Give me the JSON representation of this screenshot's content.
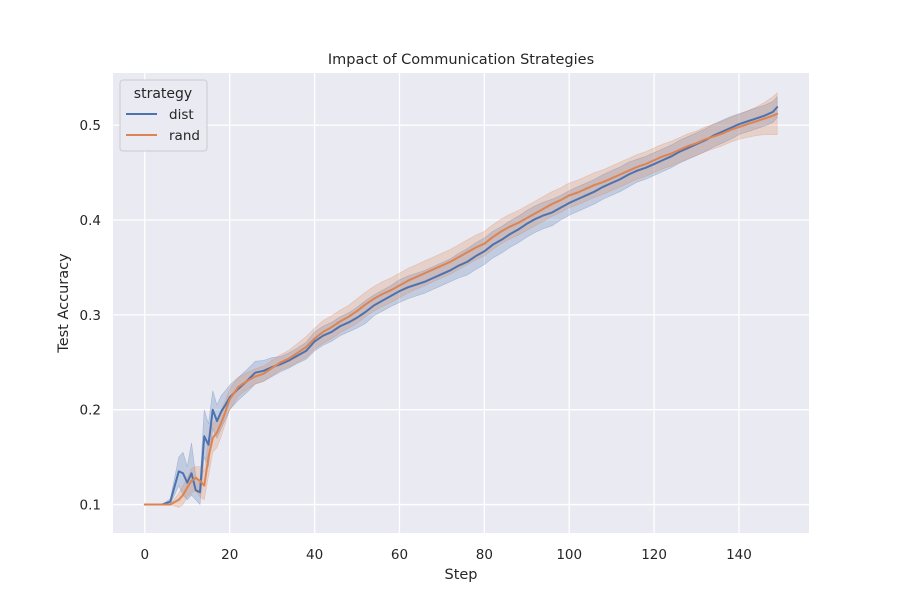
{
  "chart_data": {
    "type": "line",
    "title": "Impact of Communication Strategies",
    "xlabel": "Step",
    "ylabel": "Test Accuracy",
    "xlim": [
      -7.5,
      156.5
    ],
    "ylim": [
      0.07,
      0.555
    ],
    "xticks": [
      0,
      20,
      40,
      60,
      80,
      100,
      120,
      140
    ],
    "xtick_labels": [
      "0",
      "20",
      "40",
      "60",
      "80",
      "100",
      "120",
      "140"
    ],
    "yticks": [
      0.1,
      0.2,
      0.3,
      0.4,
      0.5
    ],
    "ytick_labels": [
      "0.1",
      "0.2",
      "0.3",
      "0.4",
      "0.5"
    ],
    "grid": true,
    "legend": {
      "title": "strategy",
      "position": "top-left"
    },
    "x": [
      0,
      2,
      4,
      6,
      8,
      9,
      10,
      11,
      12,
      13,
      14,
      15,
      16,
      17,
      18,
      19,
      20,
      22,
      24,
      26,
      28,
      30,
      32,
      34,
      36,
      38,
      40,
      42,
      44,
      46,
      48,
      50,
      52,
      54,
      56,
      58,
      60,
      62,
      64,
      66,
      68,
      70,
      72,
      74,
      76,
      78,
      80,
      82,
      84,
      86,
      88,
      90,
      92,
      94,
      96,
      98,
      100,
      102,
      104,
      106,
      108,
      110,
      112,
      114,
      116,
      118,
      120,
      122,
      124,
      126,
      128,
      130,
      132,
      134,
      136,
      138,
      140,
      142,
      144,
      146,
      148,
      149
    ],
    "series": [
      {
        "name": "dist",
        "color": "#4c72b0",
        "values": [
          0.1,
          0.1,
          0.1,
          0.103,
          0.135,
          0.133,
          0.123,
          0.133,
          0.115,
          0.113,
          0.172,
          0.163,
          0.2,
          0.188,
          0.198,
          0.205,
          0.213,
          0.222,
          0.23,
          0.239,
          0.241,
          0.245,
          0.248,
          0.252,
          0.257,
          0.262,
          0.272,
          0.278,
          0.282,
          0.288,
          0.292,
          0.297,
          0.303,
          0.31,
          0.315,
          0.32,
          0.325,
          0.329,
          0.332,
          0.335,
          0.339,
          0.343,
          0.347,
          0.352,
          0.356,
          0.362,
          0.367,
          0.374,
          0.379,
          0.385,
          0.39,
          0.396,
          0.401,
          0.405,
          0.408,
          0.413,
          0.418,
          0.422,
          0.426,
          0.43,
          0.435,
          0.439,
          0.443,
          0.448,
          0.452,
          0.455,
          0.459,
          0.463,
          0.467,
          0.472,
          0.476,
          0.48,
          0.484,
          0.489,
          0.493,
          0.497,
          0.501,
          0.504,
          0.507,
          0.51,
          0.514,
          0.519
        ],
        "lower": [
          0.1,
          0.1,
          0.1,
          0.1,
          0.12,
          0.11,
          0.105,
          0.11,
          0.105,
          0.1,
          0.15,
          0.14,
          0.18,
          0.17,
          0.18,
          0.19,
          0.2,
          0.21,
          0.218,
          0.227,
          0.23,
          0.235,
          0.24,
          0.244,
          0.249,
          0.253,
          0.262,
          0.268,
          0.272,
          0.278,
          0.282,
          0.286,
          0.291,
          0.299,
          0.304,
          0.309,
          0.313,
          0.317,
          0.32,
          0.323,
          0.327,
          0.331,
          0.335,
          0.339,
          0.342,
          0.348,
          0.353,
          0.36,
          0.365,
          0.371,
          0.376,
          0.382,
          0.387,
          0.391,
          0.394,
          0.4,
          0.405,
          0.409,
          0.413,
          0.417,
          0.422,
          0.426,
          0.43,
          0.435,
          0.44,
          0.443,
          0.447,
          0.451,
          0.455,
          0.46,
          0.464,
          0.468,
          0.472,
          0.477,
          0.481,
          0.485,
          0.49,
          0.493,
          0.496,
          0.499,
          0.503,
          0.508
        ],
        "upper": [
          0.1,
          0.1,
          0.1,
          0.106,
          0.15,
          0.155,
          0.14,
          0.165,
          0.13,
          0.125,
          0.2,
          0.185,
          0.22,
          0.205,
          0.215,
          0.22,
          0.226,
          0.234,
          0.242,
          0.251,
          0.252,
          0.255,
          0.256,
          0.26,
          0.265,
          0.271,
          0.282,
          0.288,
          0.292,
          0.298,
          0.302,
          0.308,
          0.315,
          0.321,
          0.326,
          0.331,
          0.337,
          0.341,
          0.344,
          0.347,
          0.351,
          0.355,
          0.359,
          0.365,
          0.37,
          0.376,
          0.381,
          0.388,
          0.393,
          0.399,
          0.404,
          0.41,
          0.415,
          0.419,
          0.422,
          0.426,
          0.431,
          0.435,
          0.439,
          0.443,
          0.448,
          0.452,
          0.456,
          0.461,
          0.464,
          0.467,
          0.471,
          0.475,
          0.479,
          0.484,
          0.488,
          0.492,
          0.496,
          0.501,
          0.505,
          0.509,
          0.512,
          0.515,
          0.518,
          0.521,
          0.525,
          0.53
        ]
      },
      {
        "name": "rand",
        "color": "#dd8452",
        "values": [
          0.1,
          0.1,
          0.1,
          0.1,
          0.105,
          0.11,
          0.118,
          0.125,
          0.128,
          0.125,
          0.12,
          0.15,
          0.17,
          0.176,
          0.186,
          0.198,
          0.211,
          0.224,
          0.23,
          0.235,
          0.238,
          0.244,
          0.25,
          0.254,
          0.26,
          0.266,
          0.275,
          0.282,
          0.287,
          0.293,
          0.298,
          0.304,
          0.311,
          0.317,
          0.322,
          0.326,
          0.331,
          0.336,
          0.34,
          0.344,
          0.348,
          0.352,
          0.356,
          0.361,
          0.366,
          0.371,
          0.375,
          0.382,
          0.388,
          0.393,
          0.397,
          0.402,
          0.407,
          0.412,
          0.417,
          0.421,
          0.426,
          0.429,
          0.433,
          0.437,
          0.44,
          0.444,
          0.448,
          0.452,
          0.456,
          0.459,
          0.463,
          0.467,
          0.47,
          0.474,
          0.478,
          0.481,
          0.485,
          0.488,
          0.491,
          0.495,
          0.498,
          0.501,
          0.504,
          0.507,
          0.51,
          0.512
        ],
        "lower": [
          0.1,
          0.1,
          0.1,
          0.1,
          0.097,
          0.1,
          0.108,
          0.112,
          0.115,
          0.108,
          0.105,
          0.13,
          0.155,
          0.16,
          0.172,
          0.186,
          0.2,
          0.214,
          0.221,
          0.227,
          0.23,
          0.236,
          0.242,
          0.245,
          0.25,
          0.255,
          0.264,
          0.27,
          0.275,
          0.281,
          0.286,
          0.291,
          0.298,
          0.304,
          0.309,
          0.313,
          0.318,
          0.323,
          0.327,
          0.331,
          0.335,
          0.339,
          0.343,
          0.348,
          0.353,
          0.358,
          0.362,
          0.369,
          0.375,
          0.38,
          0.384,
          0.389,
          0.394,
          0.399,
          0.404,
          0.408,
          0.413,
          0.416,
          0.42,
          0.424,
          0.427,
          0.431,
          0.435,
          0.439,
          0.443,
          0.446,
          0.45,
          0.454,
          0.457,
          0.461,
          0.465,
          0.468,
          0.472,
          0.475,
          0.478,
          0.482,
          0.485,
          0.487,
          0.489,
          0.49,
          0.49,
          0.49
        ],
        "upper": [
          0.1,
          0.1,
          0.1,
          0.1,
          0.112,
          0.12,
          0.128,
          0.138,
          0.14,
          0.14,
          0.135,
          0.17,
          0.185,
          0.19,
          0.2,
          0.21,
          0.222,
          0.234,
          0.239,
          0.243,
          0.246,
          0.252,
          0.258,
          0.263,
          0.27,
          0.277,
          0.286,
          0.294,
          0.299,
          0.305,
          0.31,
          0.317,
          0.324,
          0.33,
          0.335,
          0.339,
          0.344,
          0.349,
          0.353,
          0.357,
          0.361,
          0.365,
          0.369,
          0.374,
          0.379,
          0.384,
          0.388,
          0.395,
          0.401,
          0.406,
          0.41,
          0.415,
          0.42,
          0.425,
          0.43,
          0.434,
          0.439,
          0.442,
          0.446,
          0.45,
          0.453,
          0.457,
          0.461,
          0.465,
          0.469,
          0.472,
          0.476,
          0.48,
          0.483,
          0.487,
          0.491,
          0.494,
          0.498,
          0.501,
          0.504,
          0.508,
          0.511,
          0.515,
          0.519,
          0.524,
          0.53,
          0.534
        ]
      }
    ]
  }
}
